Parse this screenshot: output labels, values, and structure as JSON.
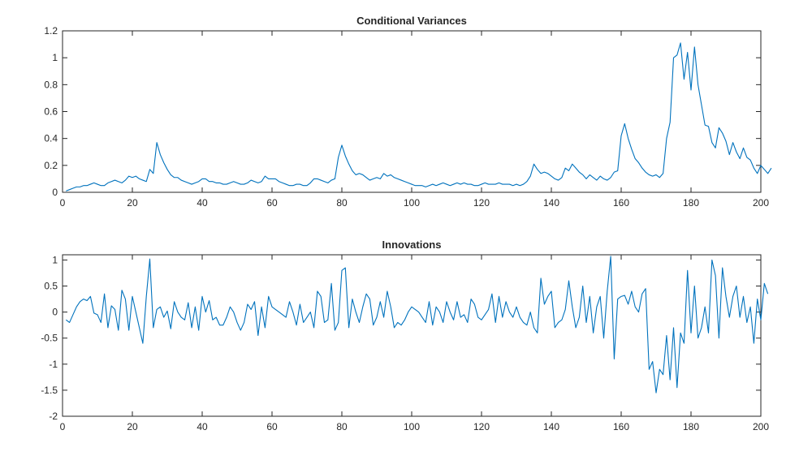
{
  "series_color": "#0072BD",
  "chart_data": [
    {
      "type": "line",
      "title": "Conditional Variances",
      "xlabel": "",
      "ylabel": "",
      "xlim": [
        0,
        200
      ],
      "ylim": [
        0,
        1.2
      ],
      "xticks": [
        0,
        20,
        40,
        60,
        80,
        100,
        120,
        140,
        160,
        180,
        200
      ],
      "xtick_labels": [
        "0",
        "20",
        "40",
        "60",
        "80",
        "100",
        "120",
        "140",
        "160",
        "180",
        "200"
      ],
      "yticks": [
        0,
        0.2,
        0.4,
        0.6,
        0.8,
        1,
        1.2
      ],
      "ytick_labels": [
        "0",
        "0.2",
        "0.4",
        "0.6",
        "0.8",
        "1",
        "1.2"
      ],
      "grid": false,
      "series": [
        {
          "x_start": 1,
          "x_step": 1,
          "values": [
            0.01,
            0.02,
            0.03,
            0.04,
            0.04,
            0.05,
            0.05,
            0.06,
            0.07,
            0.06,
            0.05,
            0.05,
            0.07,
            0.08,
            0.09,
            0.08,
            0.07,
            0.09,
            0.12,
            0.11,
            0.12,
            0.1,
            0.09,
            0.08,
            0.17,
            0.14,
            0.37,
            0.28,
            0.22,
            0.17,
            0.13,
            0.11,
            0.11,
            0.09,
            0.08,
            0.07,
            0.06,
            0.07,
            0.08,
            0.1,
            0.1,
            0.08,
            0.08,
            0.07,
            0.07,
            0.06,
            0.06,
            0.07,
            0.08,
            0.07,
            0.06,
            0.06,
            0.07,
            0.09,
            0.08,
            0.07,
            0.08,
            0.12,
            0.1,
            0.1,
            0.1,
            0.08,
            0.07,
            0.06,
            0.05,
            0.05,
            0.06,
            0.06,
            0.05,
            0.05,
            0.07,
            0.1,
            0.1,
            0.09,
            0.08,
            0.07,
            0.09,
            0.1,
            0.26,
            0.35,
            0.27,
            0.21,
            0.16,
            0.13,
            0.14,
            0.13,
            0.11,
            0.09,
            0.1,
            0.11,
            0.1,
            0.14,
            0.12,
            0.13,
            0.11,
            0.1,
            0.09,
            0.08,
            0.07,
            0.06,
            0.05,
            0.05,
            0.05,
            0.04,
            0.05,
            0.06,
            0.05,
            0.06,
            0.07,
            0.06,
            0.05,
            0.06,
            0.07,
            0.06,
            0.07,
            0.06,
            0.06,
            0.05,
            0.05,
            0.06,
            0.07,
            0.06,
            0.06,
            0.06,
            0.07,
            0.06,
            0.06,
            0.06,
            0.05,
            0.06,
            0.05,
            0.06,
            0.08,
            0.12,
            0.21,
            0.17,
            0.14,
            0.15,
            0.14,
            0.12,
            0.1,
            0.09,
            0.11,
            0.18,
            0.16,
            0.21,
            0.18,
            0.15,
            0.13,
            0.1,
            0.13,
            0.11,
            0.09,
            0.12,
            0.1,
            0.09,
            0.11,
            0.15,
            0.16,
            0.42,
            0.51,
            0.4,
            0.32,
            0.25,
            0.22,
            0.18,
            0.15,
            0.13,
            0.12,
            0.13,
            0.11,
            0.14,
            0.4,
            0.52,
            1.0,
            1.02,
            1.11,
            0.84,
            1.04,
            0.76,
            1.08,
            0.8,
            0.65,
            0.5,
            0.49,
            0.37,
            0.33,
            0.48,
            0.44,
            0.38,
            0.28,
            0.37,
            0.3,
            0.25,
            0.33,
            0.26,
            0.24,
            0.18,
            0.14,
            0.2,
            0.17,
            0.14,
            0.18
          ]
        }
      ]
    },
    {
      "type": "line",
      "title": "Innovations",
      "xlabel": "",
      "ylabel": "",
      "xlim": [
        0,
        200
      ],
      "ylim": [
        -2,
        1.1
      ],
      "xticks": [
        0,
        20,
        40,
        60,
        80,
        100,
        120,
        140,
        160,
        180,
        200
      ],
      "xtick_labels": [
        "0",
        "20",
        "40",
        "60",
        "80",
        "100",
        "120",
        "140",
        "160",
        "180",
        "200"
      ],
      "yticks": [
        -2,
        -1.5,
        -1,
        -0.5,
        0,
        0.5,
        1
      ],
      "ytick_labels": [
        "-2",
        "-1.5",
        "-1",
        "-0.5",
        "0",
        "0.5",
        "1"
      ],
      "grid": false,
      "series": [
        {
          "x_start": 1,
          "x_step": 1,
          "values": [
            -0.15,
            -0.2,
            -0.05,
            0.1,
            0.2,
            0.25,
            0.22,
            0.3,
            -0.02,
            -0.05,
            -0.2,
            0.35,
            -0.3,
            0.12,
            0.05,
            -0.35,
            0.42,
            0.25,
            -0.35,
            0.3,
            0.0,
            -0.3,
            -0.6,
            0.3,
            1.02,
            -0.3,
            0.05,
            0.1,
            -0.1,
            0.02,
            -0.32,
            0.2,
            0.0,
            -0.1,
            -0.15,
            0.18,
            -0.3,
            0.1,
            -0.35,
            0.3,
            0.0,
            0.22,
            -0.15,
            -0.1,
            -0.25,
            -0.25,
            -0.1,
            0.1,
            0.0,
            -0.2,
            -0.35,
            -0.2,
            0.15,
            0.05,
            0.2,
            -0.45,
            0.1,
            -0.3,
            0.3,
            0.1,
            0.05,
            0.0,
            -0.05,
            -0.1,
            0.2,
            0.0,
            -0.25,
            0.15,
            -0.2,
            -0.1,
            0.0,
            -0.3,
            0.4,
            0.3,
            -0.2,
            -0.15,
            0.55,
            -0.35,
            -0.2,
            0.8,
            0.85,
            -0.3,
            0.25,
            0.0,
            -0.2,
            0.1,
            0.35,
            0.25,
            -0.25,
            -0.1,
            0.2,
            -0.1,
            0.4,
            0.1,
            -0.3,
            -0.2,
            -0.25,
            -0.15,
            0.0,
            0.1,
            0.05,
            0.0,
            -0.1,
            -0.2,
            0.2,
            -0.25,
            0.1,
            0.0,
            -0.2,
            0.2,
            0.0,
            -0.15,
            0.2,
            -0.1,
            -0.05,
            -0.2,
            0.25,
            0.15,
            -0.1,
            -0.15,
            -0.05,
            0.05,
            0.35,
            -0.2,
            0.3,
            -0.1,
            0.2,
            0.0,
            -0.1,
            0.1,
            -0.1,
            -0.2,
            -0.25,
            0.0,
            -0.3,
            -0.4,
            0.65,
            0.15,
            0.3,
            0.4,
            -0.3,
            -0.2,
            -0.15,
            0.05,
            0.6,
            0.1,
            -0.3,
            -0.1,
            0.5,
            -0.2,
            0.3,
            -0.4,
            0.1,
            0.3,
            -0.5,
            0.4,
            1.07,
            -0.9,
            0.25,
            0.3,
            0.32,
            0.15,
            0.4,
            0.1,
            0.0,
            0.35,
            0.45,
            -1.1,
            -0.95,
            -1.55,
            -1.1,
            -1.2,
            -0.45,
            -1.3,
            -0.3,
            -1.45,
            -0.4,
            -0.6,
            0.8,
            -0.4,
            0.5,
            -0.5,
            -0.3,
            0.1,
            -0.4,
            1.0,
            0.7,
            -0.5,
            0.85,
            0.3,
            -0.1,
            0.3,
            0.5,
            -0.1,
            0.3,
            -0.2,
            0.1,
            -0.6,
            0.25,
            -0.15,
            0.55,
            0.35
          ]
        }
      ]
    }
  ]
}
